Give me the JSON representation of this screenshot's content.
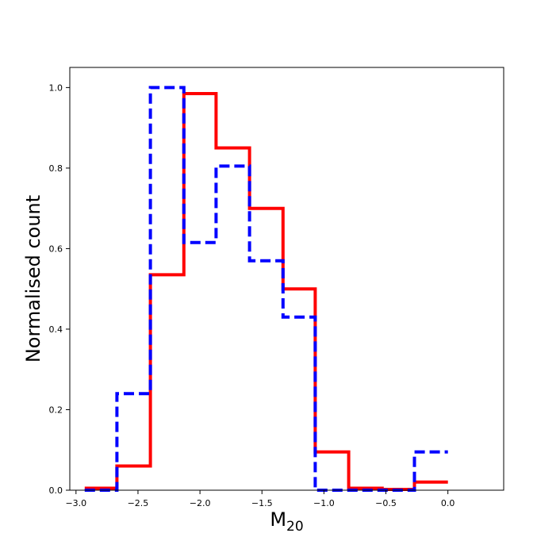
{
  "chart_data": {
    "type": "histogram",
    "title": "",
    "xlabel": "M",
    "xlabel_subscript": "20",
    "ylabel": "Normalised count",
    "xlim": [
      -3.05,
      0.45
    ],
    "ylim": [
      0.0,
      1.05
    ],
    "xticks": [
      -3.0,
      -2.5,
      -2.0,
      -1.5,
      -1.0,
      -0.5,
      0.0
    ],
    "xtick_labels": [
      "−3.0",
      "−2.5",
      "−2.0",
      "−1.5",
      "−1.0",
      "−0.5",
      "0.0"
    ],
    "yticks": [
      0.0,
      0.2,
      0.4,
      0.6,
      0.8,
      1.0
    ],
    "ytick_labels": [
      "0.0",
      "0.2",
      "0.4",
      "0.6",
      "0.8",
      "1.0"
    ],
    "grid": false,
    "series": [
      {
        "style": "solid",
        "color": "#ff0000",
        "bin_edges": [
          -2.93,
          -2.67,
          -2.4,
          -2.13,
          -1.87,
          -1.6,
          -1.33,
          -1.07,
          -0.8,
          -0.53,
          -0.27,
          0.0
        ],
        "values": [
          0.005,
          0.06,
          0.535,
          0.985,
          0.85,
          0.7,
          0.5,
          0.095,
          0.005,
          0.002,
          0.02
        ]
      },
      {
        "style": "dashed",
        "color": "#0000ff",
        "bin_edges": [
          -2.93,
          -2.67,
          -2.4,
          -2.13,
          -1.87,
          -1.6,
          -1.33,
          -1.07,
          -0.8,
          -0.53,
          -0.27,
          0.0
        ],
        "values": [
          0.0,
          0.24,
          1.0,
          0.615,
          0.805,
          0.57,
          0.43,
          0.0,
          0.0,
          0.0,
          0.095
        ]
      }
    ]
  }
}
